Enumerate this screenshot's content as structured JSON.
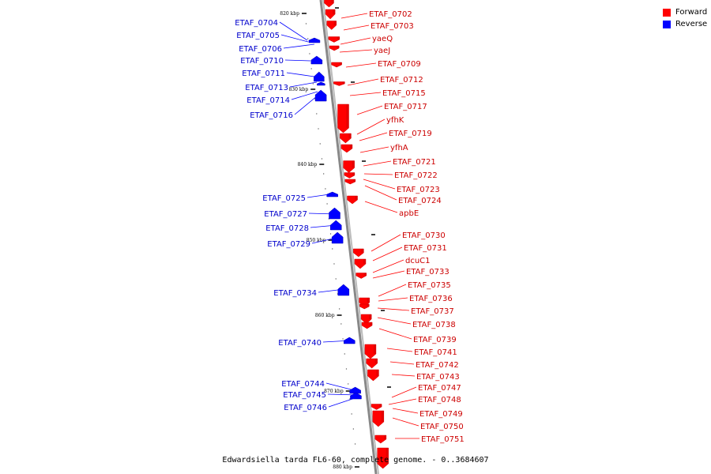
{
  "title": "Edwardsiella tarda FL6-60, complete genome. - 0..3684607",
  "colors": {
    "forward": "#ff0000",
    "forward_dark": "#cc0000",
    "forward_label": "#cc0000",
    "reverse": "#0000ff",
    "reverse_dark": "#0000b3",
    "reverse_label": "#0000cc",
    "backbone": "#888888",
    "ruler": "#000000"
  },
  "legend": [
    {
      "label": "Forward",
      "color": "#ff0000"
    },
    {
      "label": "Reverse",
      "color": "#0000ff"
    }
  ],
  "scale": {
    "unit": "kbp",
    "ticks": [
      {
        "label": "820 kbp",
        "kbp": 820
      },
      {
        "label": "830 kbp",
        "kbp": 830
      },
      {
        "label": "840 kbp",
        "kbp": 840
      },
      {
        "label": "850 kbp",
        "kbp": 850
      },
      {
        "label": "860 kbp",
        "kbp": 860
      },
      {
        "label": "870 kbp",
        "kbp": 870
      },
      {
        "label": "880 kbp",
        "kbp": 880
      }
    ]
  },
  "forward_genes": [
    "ETAF_0702",
    "ETAF_0703",
    "yaeQ",
    "yaeJ",
    "ETAF_0709",
    "ETAF_0712",
    "ETAF_0715",
    "ETAF_0717",
    "yfhK",
    "ETAF_0719",
    "yfhA",
    "ETAF_0721",
    "ETAF_0722",
    "ETAF_0723",
    "ETAF_0724",
    "apbE",
    "ETAF_0730",
    "ETAF_0731",
    "dcuC1",
    "ETAF_0733",
    "ETAF_0735",
    "ETAF_0736",
    "ETAF_0737",
    "ETAF_0738",
    "ETAF_0739",
    "ETAF_0741",
    "ETAF_0742",
    "ETAF_0743",
    "ETAF_0747",
    "ETAF_0748",
    "ETAF_0749",
    "ETAF_0750",
    "ETAF_0751"
  ],
  "reverse_genes": [
    "ETAF_0704",
    "ETAF_0705",
    "ETAF_0706",
    "ETAF_0710",
    "ETAF_0711",
    "ETAF_0713",
    "ETAF_0714",
    "ETAF_0716",
    "ETAF_0725",
    "ETAF_0727",
    "ETAF_0728",
    "ETAF_0729",
    "ETAF_0734",
    "ETAF_0740",
    "ETAF_0744",
    "ETAF_0745",
    "ETAF_0746"
  ]
}
